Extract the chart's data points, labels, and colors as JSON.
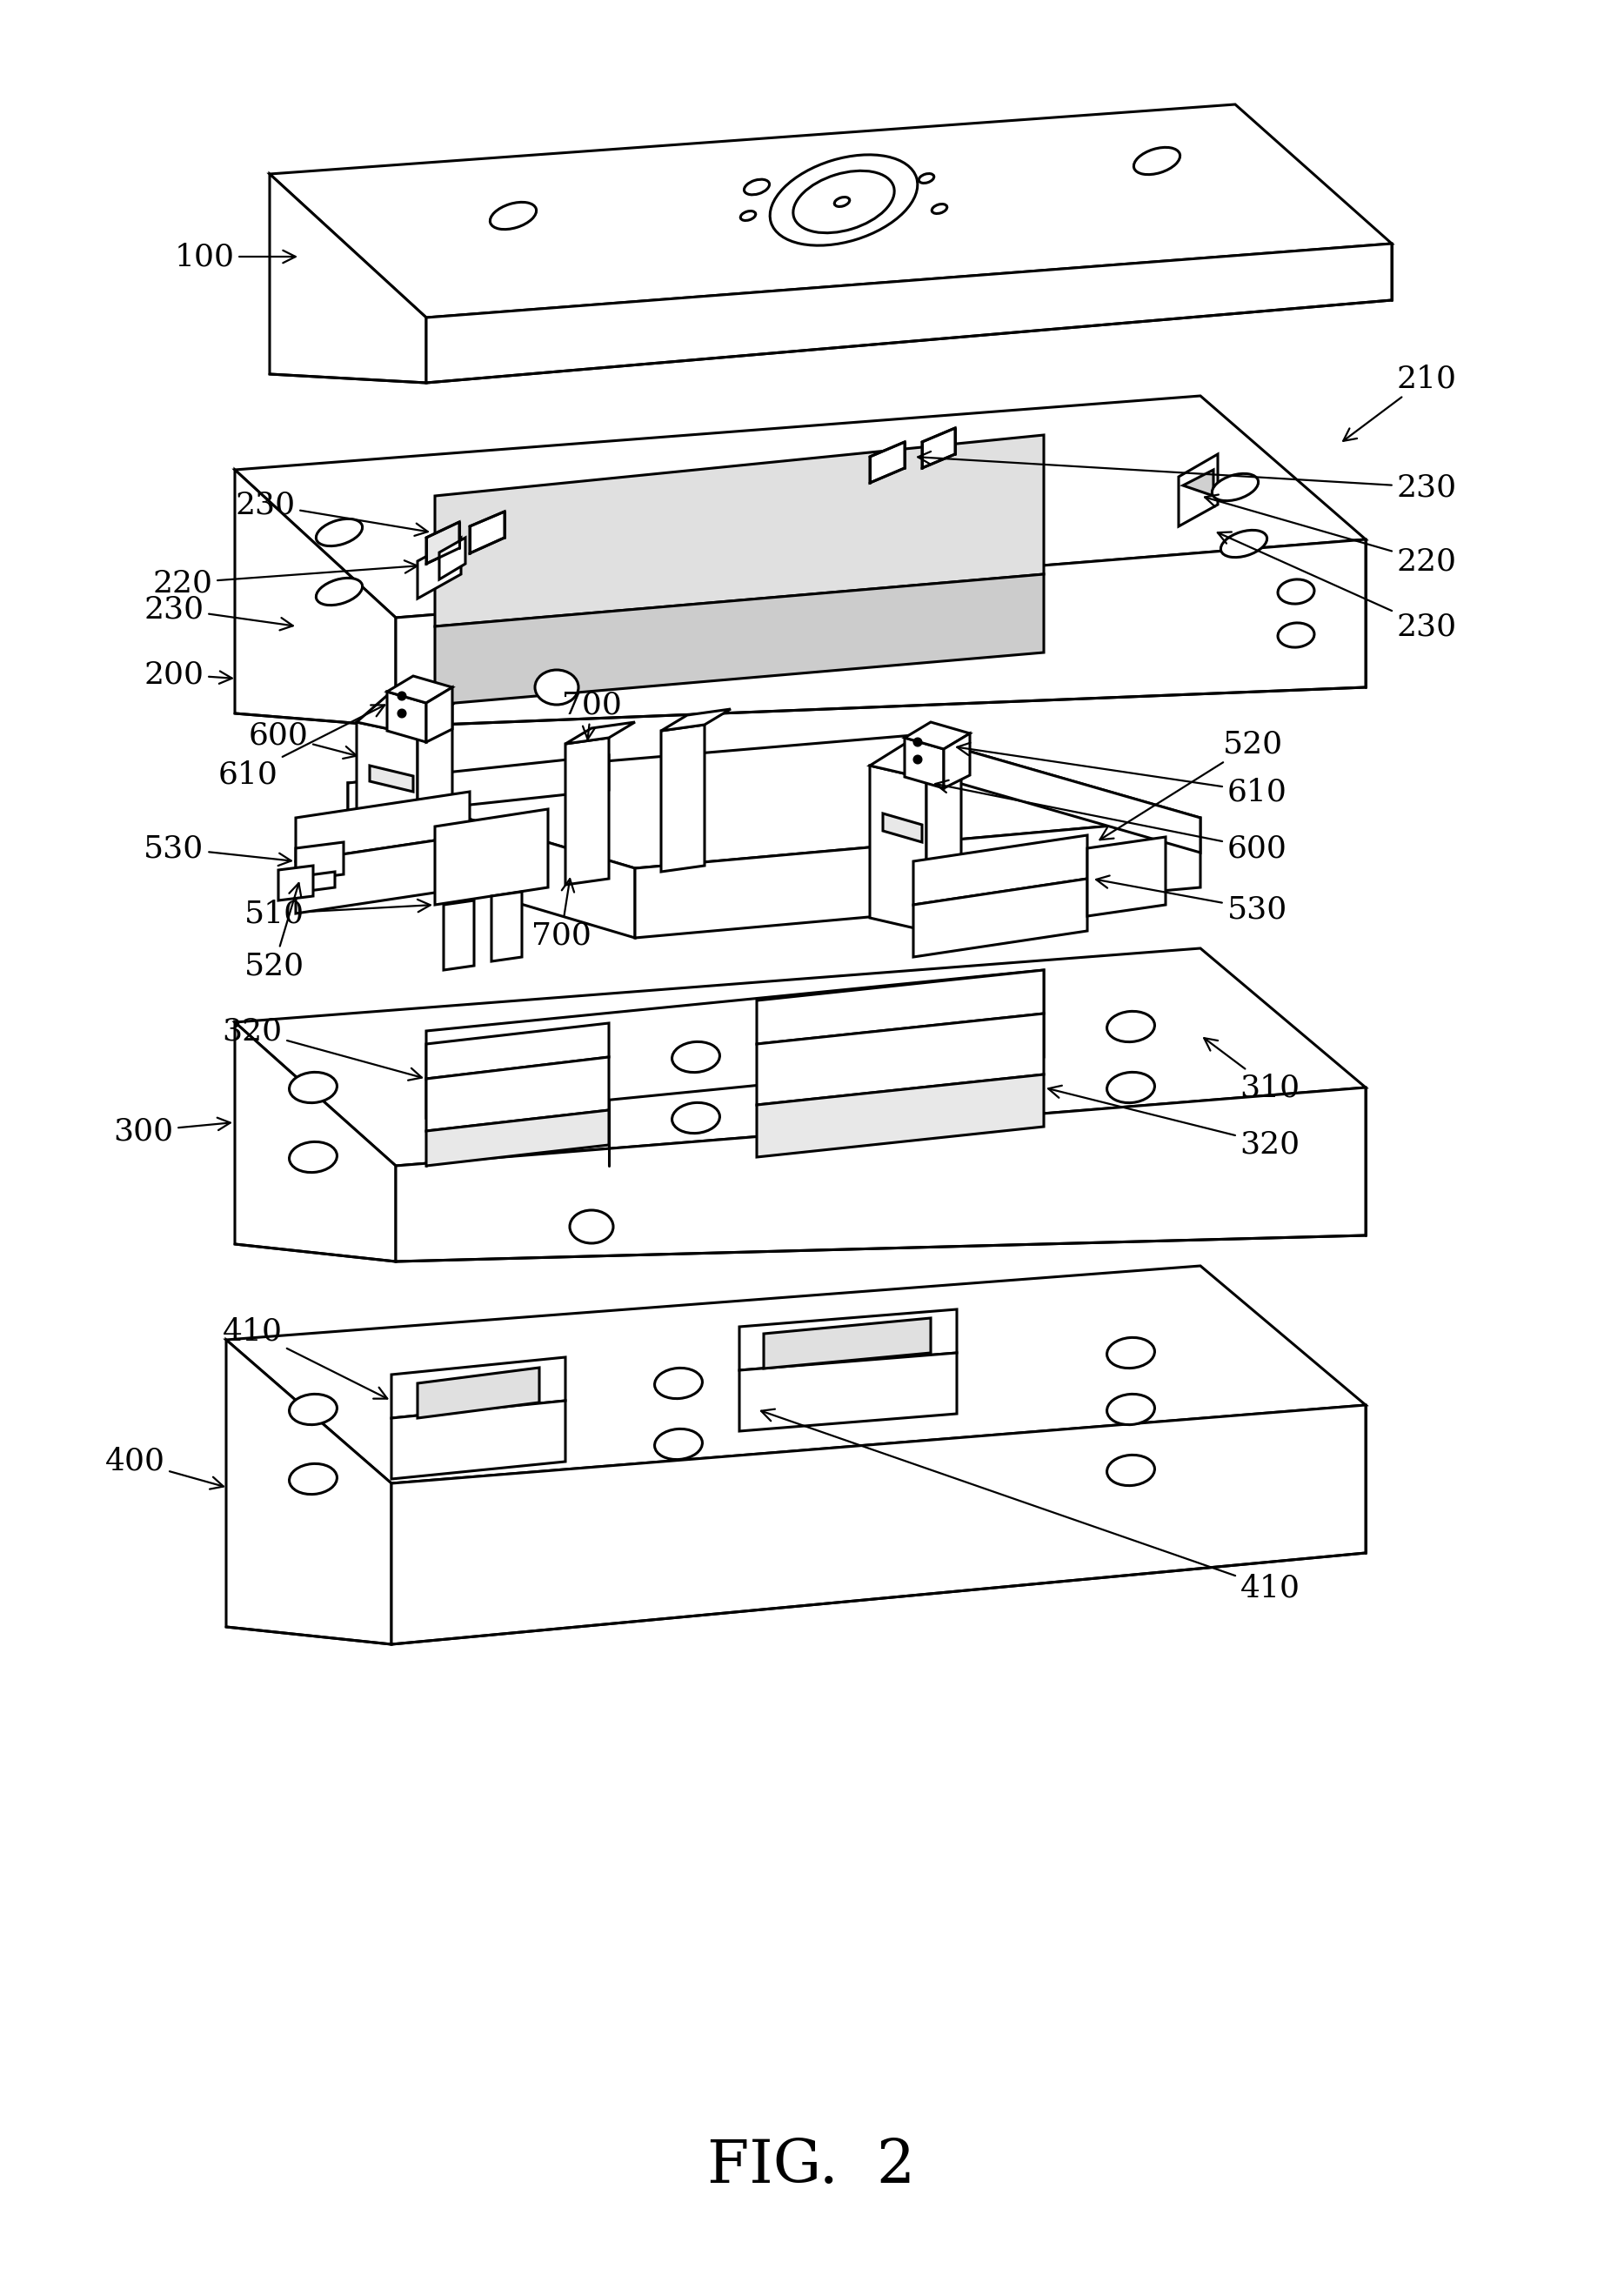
{
  "title": "FIG. 2",
  "title_fontsize": 40,
  "background_color": "#ffffff",
  "line_color": "#000000",
  "line_width": 2.2,
  "label_fontsize": 26
}
